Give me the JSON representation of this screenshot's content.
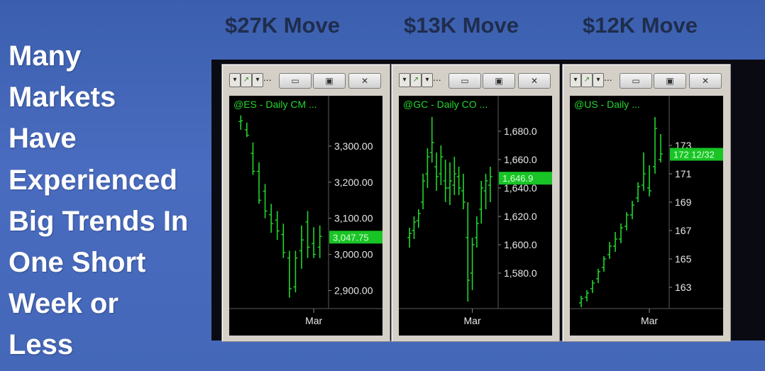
{
  "headline": [
    "Many",
    "Markets",
    "Have",
    "Experienced",
    "Big Trends In",
    "One Short",
    "Week or",
    "Less"
  ],
  "move_titles": [
    "$27K Move",
    "$13K Move",
    "$12K Move"
  ],
  "icons": {
    "window_icon": "chart-window-icon",
    "minimize": "minimize-icon",
    "maximize": "maximize-icon",
    "close": "close-icon"
  },
  "window_dots": "...",
  "colors": {
    "bar": "#21d62d",
    "last_price_bg": "#19c426",
    "axis_text": "#e8e8e8",
    "background": "#000000"
  },
  "chart_data": [
    {
      "type": "ohlc",
      "symbol_label": "@ES - Daily  CM ...",
      "ylim": [
        2850,
        3400
      ],
      "y_ticks": [
        "3,300.00",
        "3,200.00",
        "3,100.00",
        "3,000.00",
        "2,900.00"
      ],
      "y_tick_values": [
        3300,
        3200,
        3100,
        3000,
        2900
      ],
      "x_tick": {
        "label": "Mar",
        "index": 12
      },
      "last_price": {
        "label": "3,047.75",
        "value": 3047.75
      },
      "bars": [
        [
          3368,
          3385,
          3345,
          3370
        ],
        [
          3345,
          3365,
          3325,
          3330
        ],
        [
          3280,
          3310,
          3220,
          3230
        ],
        [
          3230,
          3255,
          3140,
          3150
        ],
        [
          3175,
          3195,
          3100,
          3120
        ],
        [
          3110,
          3140,
          3060,
          3085
        ],
        [
          3095,
          3120,
          3040,
          3065
        ],
        [
          3055,
          3085,
          2990,
          3005
        ],
        [
          2990,
          3010,
          2880,
          2905
        ],
        [
          2910,
          3010,
          2895,
          2990
        ],
        [
          3010,
          3080,
          2960,
          3040
        ],
        [
          3090,
          3120,
          2990,
          3020
        ],
        [
          3030,
          3075,
          2990,
          3000
        ],
        [
          3020,
          3080,
          2990,
          3050
        ]
      ]
    },
    {
      "type": "ohlc",
      "symbol_label": "@GC - Daily  CO ...",
      "ylim": [
        1555,
        1695
      ],
      "y_ticks": [
        "1,680.0",
        "1,660.0",
        "1,640.0",
        "1,620.0",
        "1,600.0",
        "1,580.0"
      ],
      "y_tick_values": [
        1680,
        1660,
        1640,
        1620,
        1600,
        1580
      ],
      "x_tick": {
        "label": "Mar",
        "index": 14
      },
      "last_price": {
        "label": "1,646.9",
        "value": 1646.9
      },
      "bars": [
        [
          1605,
          1612,
          1598,
          1608
        ],
        [
          1610,
          1620,
          1604,
          1616
        ],
        [
          1617,
          1625,
          1612,
          1622
        ],
        [
          1630,
          1650,
          1625,
          1645
        ],
        [
          1650,
          1668,
          1640,
          1662
        ],
        [
          1665,
          1690,
          1658,
          1672
        ],
        [
          1655,
          1665,
          1638,
          1648
        ],
        [
          1650,
          1670,
          1642,
          1662
        ],
        [
          1645,
          1660,
          1630,
          1640
        ],
        [
          1640,
          1658,
          1628,
          1645
        ],
        [
          1642,
          1662,
          1635,
          1650
        ],
        [
          1648,
          1655,
          1635,
          1640
        ],
        [
          1638,
          1650,
          1625,
          1630
        ],
        [
          1605,
          1630,
          1560,
          1575
        ],
        [
          1580,
          1605,
          1568,
          1600
        ],
        [
          1605,
          1620,
          1598,
          1615
        ],
        [
          1625,
          1645,
          1615,
          1640
        ],
        [
          1638,
          1650,
          1625,
          1645
        ],
        [
          1642,
          1655,
          1630,
          1648
        ]
      ]
    },
    {
      "type": "ohlc",
      "symbol_label": "@US - Daily  ...",
      "ylim": [
        161.5,
        175.5
      ],
      "y_ticks": [
        "173",
        "171",
        "169",
        "167",
        "165",
        "163"
      ],
      "y_tick_values": [
        173,
        171,
        169,
        167,
        165,
        163
      ],
      "x_tick": {
        "label": "Mar",
        "index": 12
      },
      "last_price": {
        "label": "172 12/32",
        "value": 172.375
      },
      "bars": [
        [
          161.9,
          162.4,
          161.6,
          162.2
        ],
        [
          162.3,
          162.8,
          162.0,
          162.6
        ],
        [
          162.9,
          163.5,
          162.6,
          163.3
        ],
        [
          163.6,
          164.3,
          163.3,
          164.1
        ],
        [
          164.4,
          165.2,
          164.1,
          165.0
        ],
        [
          165.3,
          166.2,
          165.0,
          165.9
        ],
        [
          165.9,
          166.9,
          165.5,
          166.4
        ],
        [
          166.4,
          167.5,
          166.1,
          167.2
        ],
        [
          167.3,
          168.3,
          167.0,
          168.1
        ],
        [
          168.1,
          169.1,
          167.8,
          168.8
        ],
        [
          169.3,
          170.4,
          169.0,
          170.1
        ],
        [
          170.2,
          172.5,
          169.8,
          171.0
        ],
        [
          170.0,
          171.6,
          169.4,
          169.8
        ],
        [
          171.5,
          175.0,
          171.0,
          174.2
        ],
        [
          172.0,
          173.8,
          171.8,
          172.4
        ]
      ]
    }
  ]
}
